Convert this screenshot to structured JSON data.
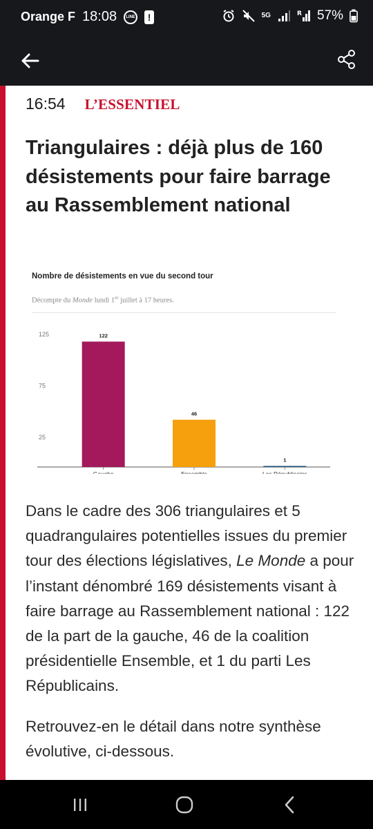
{
  "status_bar": {
    "carrier": "Orange F",
    "time": "18:08",
    "line_badge": "LINE",
    "alert_badge": "!",
    "network": "5G",
    "battery": "57%"
  },
  "toolbar": {
    "back_icon": "arrow-left-icon",
    "share_icon": "share-icon"
  },
  "entry": {
    "time": "16:54",
    "tag": "L’ESSENTIEL",
    "headline": "Triangulaires : déjà plus de 160 désistements pour faire barrage au Rassemblement national"
  },
  "chart_data": {
    "type": "bar",
    "title": "Nombre de désistements en vue du second tour",
    "subtitle_pre": "Décompte du ",
    "subtitle_italic": "Monde",
    "subtitle_mid": " lundi 1",
    "subtitle_sup": "er",
    "subtitle_post": " juillet à 17 heures.",
    "categories": [
      "Gauche",
      "Ensemble",
      "Les Républicains"
    ],
    "values": [
      122,
      46,
      1
    ],
    "colors": [
      "#a3195b",
      "#f5a00c",
      "#1f4f7a"
    ],
    "y_ticks": [
      25,
      75,
      125
    ],
    "ylim": [
      0,
      125
    ],
    "grid": false
  },
  "body": {
    "para1_a": "Dans le cadre des 306 triangulaires et 5 quadrangulaires potentielles issues du premier tour des élections législatives, ",
    "para1_italic": "Le Monde",
    "para1_b": " a pour l’instant dénombré 169 désistements visant à faire barrage au Rassemblement national : 122 de la part de la gauche, 46 de la coalition présidentielle Ensemble, et 1 du parti Les Républicains.",
    "para2": "Retrouvez-en le détail dans notre synthèse évolutive, ci-dessous."
  },
  "nav_bar": {
    "recents_icon": "recents-icon",
    "home_icon": "home-icon",
    "back_icon": "back-chevron-icon"
  },
  "colors": {
    "accent_red": "#c8102e",
    "toolbar_bg": "#16181b"
  }
}
